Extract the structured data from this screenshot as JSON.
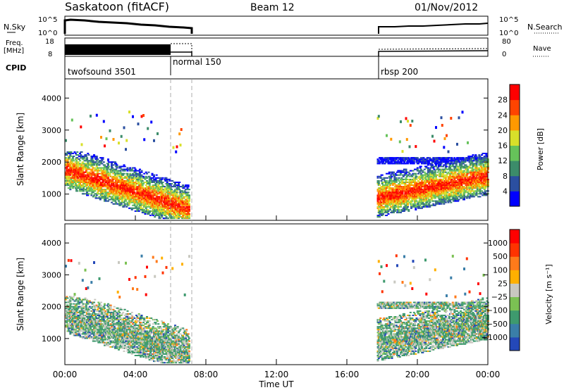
{
  "header": {
    "title": "Saskatoon (fitACF)",
    "beam": "Beam 12",
    "date": "01/Nov/2012"
  },
  "summary": {
    "nsky_label": "N.Sky",
    "nsky_ticks": [
      "10^5",
      "10^0"
    ],
    "nsearch_label": "N.Search",
    "nsearch_ticks": [
      "10^5",
      "10^0"
    ],
    "freq_label": "Freq.",
    "freq_unit": "[MHz]",
    "freq_ticks": [
      "18",
      "8"
    ],
    "nave_label": "Nave",
    "nave_ticks": [
      "80",
      "0"
    ],
    "cpid_label": "CPID",
    "cpids": [
      {
        "name": "twofsound 3501",
        "start": 0.0,
        "end": 6.0
      },
      {
        "name": "normal 150",
        "start": 6.0,
        "end": 7.0
      },
      {
        "name": "rbsp 200",
        "start": 17.7,
        "end": 24.0
      }
    ]
  },
  "chart_data": [
    {
      "type": "heatmap",
      "name": "power",
      "ylabel": "Slant Range [km]",
      "ylim": [
        180,
        4600
      ],
      "yticks": [
        1000,
        2000,
        3000,
        4000
      ],
      "xlim": [
        0,
        24
      ],
      "colorbar": {
        "label": "Power [dB]",
        "ticks": [
          "4",
          "8",
          "12",
          "16",
          "20",
          "24",
          "28"
        ],
        "min": 0,
        "max": 32,
        "colors": [
          "#0000ff",
          "#2b4fa0",
          "#3c8c6a",
          "#66c25a",
          "#d8e02a",
          "#ff9900",
          "#ff4400",
          "#ff0000"
        ]
      },
      "data_segments": [
        {
          "x": [
            0.0,
            7.0
          ],
          "y": [
            200,
            2200
          ],
          "dominant": "red/orange",
          "trend": "range decreasing with time"
        },
        {
          "x": [
            17.7,
            24.0
          ],
          "y": [
            300,
            2100
          ],
          "dominant": "red/orange",
          "trend": "range increasing with time"
        }
      ]
    },
    {
      "type": "heatmap",
      "name": "velocity",
      "ylabel": "Slant Range [km]",
      "xlabel": "Time UT",
      "xticks": [
        "00:00",
        "04:00",
        "08:00",
        "12:00",
        "16:00",
        "20:00",
        "00:00"
      ],
      "ylim": [
        180,
        4600
      ],
      "yticks": [
        1000,
        2000,
        3000,
        4000
      ],
      "xlim": [
        0,
        24
      ],
      "colorbar": {
        "label": "Velocity [m s⁻¹]",
        "ticks": [
          "1000",
          "500",
          "100",
          "25",
          "−25",
          "−100",
          "−500",
          "−1000"
        ],
        "colors": [
          "#2448b8",
          "#3a7ea8",
          "#3e9a6e",
          "#7bc153",
          "#c8c8c0",
          "#ffb000",
          "#ff7a1a",
          "#ff3300",
          "#ff0000"
        ]
      },
      "data_segments": [
        {
          "x": [
            0.0,
            7.0
          ],
          "y": [
            200,
            2200
          ],
          "dominant": "green/grey",
          "trend": "range decreasing with time"
        },
        {
          "x": [
            17.7,
            24.0
          ],
          "y": [
            300,
            2000
          ],
          "dominant": "green/grey",
          "trend": "range increasing with time"
        }
      ]
    }
  ]
}
